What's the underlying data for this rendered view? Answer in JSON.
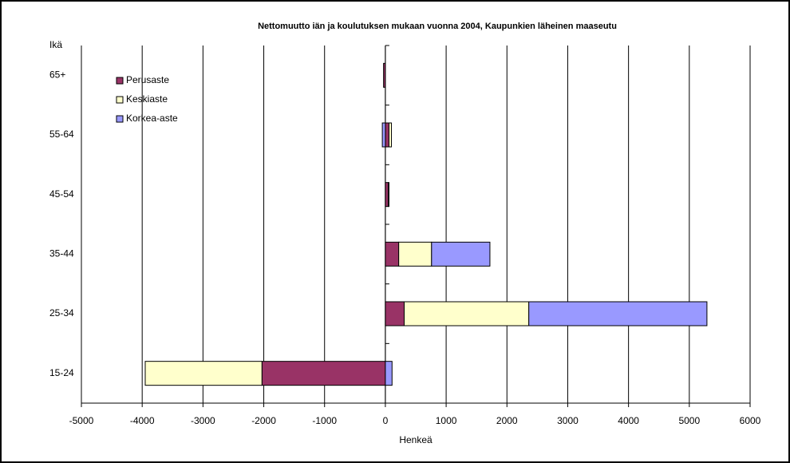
{
  "chart_data": {
    "type": "bar",
    "orientation": "horizontal",
    "stacked": true,
    "title": "Nettomuutto iän ja koulutuksen mukaan vuonna 2004, Kaupunkien läheinen maaseutu",
    "ylabel": "Ikä",
    "xlabel": "Henkeä",
    "categories": [
      "15-24",
      "25-34",
      "35-44",
      "45-54",
      "55-64",
      "65+"
    ],
    "series": [
      {
        "name": "Perusaste",
        "color": "#993366",
        "values": [
          -2030,
          310,
          220,
          50,
          60,
          -30
        ]
      },
      {
        "name": "Keskiaste",
        "color": "#ffffcc",
        "values": [
          -1920,
          2050,
          540,
          10,
          40,
          0
        ]
      },
      {
        "name": "Korkea-aste",
        "color": "#9999ff",
        "values": [
          110,
          2930,
          960,
          0,
          -50,
          0
        ]
      }
    ],
    "xlim": [
      -5000,
      6000
    ],
    "xticks": [
      -5000,
      -4000,
      -3000,
      -2000,
      -1000,
      0,
      1000,
      2000,
      3000,
      4000,
      5000,
      6000
    ],
    "grid": true,
    "legend": "top-left"
  }
}
